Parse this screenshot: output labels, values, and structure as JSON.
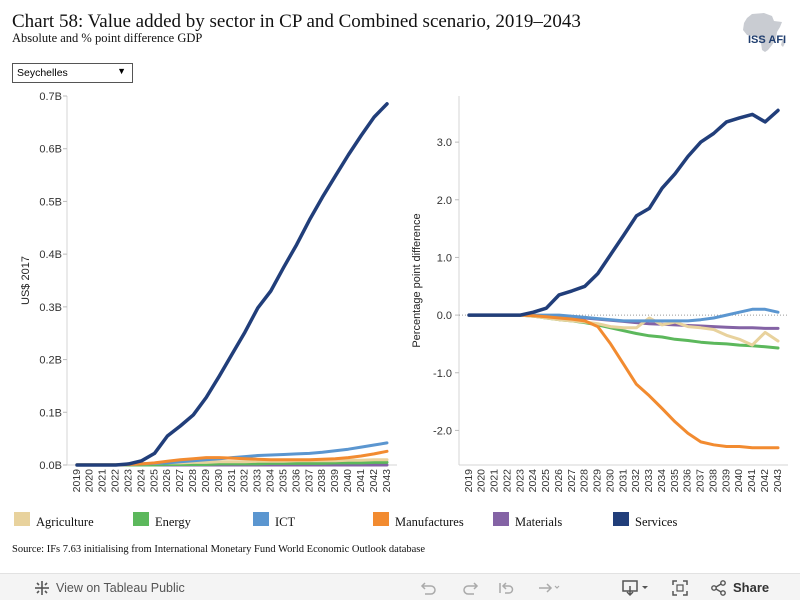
{
  "header": {
    "title": "Chart 58: Value added by sector in CP and Combined scenario, 2019–2043",
    "subtitle": "Absolute and % point difference GDP",
    "logo_text": "ISS AFI"
  },
  "filter": {
    "selected": "Seychelles"
  },
  "colors": {
    "Agriculture": "#e8d29d",
    "Energy": "#5cb85c",
    "ICT": "#5b96d0",
    "Manufactures": "#f28b30",
    "Materials": "#8463a5",
    "Services": "#213e7a"
  },
  "legend": [
    "Agriculture",
    "Energy",
    "ICT",
    "Manufactures",
    "Materials",
    "Services"
  ],
  "source": "Source: IFs 7.63 initialising from International Monetary Fund World Economic Outlook database",
  "toolbar": {
    "view_label": "View on Tableau Public",
    "share_label": "Share"
  },
  "chart_data": [
    {
      "type": "line",
      "title": "",
      "xlabel": "",
      "ylabel": "US$ 2017",
      "ylim": [
        0,
        0.7
      ],
      "yticks": [
        0,
        0.1,
        0.2,
        0.3,
        0.4,
        0.5,
        0.6,
        0.7
      ],
      "ytick_labels": [
        "0.0B",
        "0.1B",
        "0.2B",
        "0.3B",
        "0.4B",
        "0.5B",
        "0.6B",
        "0.7B"
      ],
      "grid": false,
      "zero_line": false,
      "x": [
        2019,
        2020,
        2021,
        2022,
        2023,
        2024,
        2025,
        2026,
        2027,
        2028,
        2029,
        2030,
        2031,
        2032,
        2033,
        2034,
        2035,
        2036,
        2037,
        2038,
        2039,
        2040,
        2041,
        2042,
        2043
      ],
      "series": [
        {
          "name": "Agriculture",
          "values": [
            0.001,
            0.001,
            0.001,
            0.001,
            0.001,
            0.002,
            0.003,
            0.004,
            0.004,
            0.005,
            0.005,
            0.006,
            0.006,
            0.006,
            0.007,
            0.007,
            0.007,
            0.008,
            0.008,
            0.008,
            0.008,
            0.009,
            0.009,
            0.01,
            0.01
          ]
        },
        {
          "name": "Energy",
          "values": [
            0,
            0,
            0,
            0,
            0,
            0,
            0,
            0.001,
            0.001,
            0.001,
            0.001,
            0.002,
            0.002,
            0.002,
            0.002,
            0.003,
            0.003,
            0.003,
            0.003,
            0.003,
            0.004,
            0.004,
            0.004,
            0.005,
            0.005
          ]
        },
        {
          "name": "ICT",
          "values": [
            0,
            0,
            0,
            0,
            0.001,
            0.002,
            0.003,
            0.004,
            0.006,
            0.008,
            0.01,
            0.012,
            0.014,
            0.016,
            0.018,
            0.019,
            0.02,
            0.021,
            0.022,
            0.024,
            0.027,
            0.03,
            0.034,
            0.038,
            0.042
          ]
        },
        {
          "name": "Manufactures",
          "values": [
            0,
            0,
            0,
            0,
            0.001,
            0.002,
            0.004,
            0.007,
            0.01,
            0.012,
            0.014,
            0.014,
            0.013,
            0.012,
            0.011,
            0.01,
            0.01,
            0.01,
            0.01,
            0.011,
            0.012,
            0.014,
            0.017,
            0.021,
            0.026
          ]
        },
        {
          "name": "Materials",
          "values": [
            0,
            0,
            0,
            0,
            0,
            0,
            0,
            0,
            0,
            0,
            0,
            0,
            0,
            0,
            0,
            0,
            0,
            0,
            0,
            0,
            0,
            0,
            0,
            0,
            0
          ]
        },
        {
          "name": "Services",
          "values": [
            0,
            0,
            0,
            0,
            0.002,
            0.008,
            0.022,
            0.055,
            0.074,
            0.095,
            0.128,
            0.168,
            0.21,
            0.252,
            0.298,
            0.33,
            0.375,
            0.418,
            0.465,
            0.508,
            0.548,
            0.588,
            0.625,
            0.66,
            0.685
          ]
        }
      ]
    },
    {
      "type": "line",
      "title": "",
      "xlabel": "",
      "ylabel": "Percentage point difference",
      "ylim": [
        -2.6,
        3.8
      ],
      "yticks": [
        -2,
        -1,
        0,
        1,
        2,
        3
      ],
      "ytick_labels": [
        "-2.0",
        "-1.0",
        "0.0",
        "1.0",
        "2.0",
        "3.0"
      ],
      "grid": false,
      "zero_line": true,
      "x": [
        2019,
        2020,
        2021,
        2022,
        2023,
        2024,
        2025,
        2026,
        2027,
        2028,
        2029,
        2030,
        2031,
        2032,
        2033,
        2034,
        2035,
        2036,
        2037,
        2038,
        2039,
        2040,
        2041,
        2042,
        2043
      ],
      "series": [
        {
          "name": "Agriculture",
          "values": [
            0,
            0,
            0,
            0,
            0,
            -0.02,
            -0.05,
            -0.08,
            -0.1,
            -0.12,
            -0.15,
            -0.2,
            -0.22,
            -0.22,
            -0.05,
            -0.17,
            -0.12,
            -0.2,
            -0.22,
            -0.25,
            -0.35,
            -0.42,
            -0.52,
            -0.3,
            -0.45
          ]
        },
        {
          "name": "Energy",
          "values": [
            0,
            0,
            0,
            0,
            0,
            -0.02,
            -0.05,
            -0.08,
            -0.1,
            -0.13,
            -0.17,
            -0.22,
            -0.27,
            -0.32,
            -0.36,
            -0.38,
            -0.42,
            -0.44,
            -0.47,
            -0.49,
            -0.5,
            -0.52,
            -0.53,
            -0.55,
            -0.57
          ]
        },
        {
          "name": "ICT",
          "values": [
            0,
            0,
            0,
            0,
            0,
            0,
            0,
            0,
            -0.02,
            -0.04,
            -0.06,
            -0.08,
            -0.1,
            -0.1,
            -0.1,
            -0.1,
            -0.1,
            -0.1,
            -0.08,
            -0.05,
            0,
            0.05,
            0.1,
            0.1,
            0.05
          ]
        },
        {
          "name": "Manufactures",
          "values": [
            0,
            0,
            0,
            0,
            0,
            -0.01,
            -0.03,
            -0.05,
            -0.07,
            -0.1,
            -0.2,
            -0.5,
            -0.85,
            -1.2,
            -1.4,
            -1.62,
            -1.85,
            -2.05,
            -2.2,
            -2.25,
            -2.28,
            -2.28,
            -2.3,
            -2.3,
            -2.3
          ]
        },
        {
          "name": "Materials",
          "values": [
            0,
            0,
            0,
            0,
            0,
            -0.01,
            -0.02,
            -0.03,
            -0.04,
            -0.05,
            -0.07,
            -0.09,
            -0.11,
            -0.13,
            -0.15,
            -0.16,
            -0.17,
            -0.18,
            -0.19,
            -0.2,
            -0.21,
            -0.22,
            -0.22,
            -0.23,
            -0.23
          ]
        },
        {
          "name": "Services",
          "values": [
            0,
            0,
            0,
            0,
            0,
            0.05,
            0.12,
            0.35,
            0.42,
            0.5,
            0.72,
            1.05,
            1.38,
            1.72,
            1.85,
            2.2,
            2.45,
            2.75,
            3.0,
            3.15,
            3.35,
            3.42,
            3.48,
            3.35,
            3.55
          ]
        }
      ]
    }
  ]
}
